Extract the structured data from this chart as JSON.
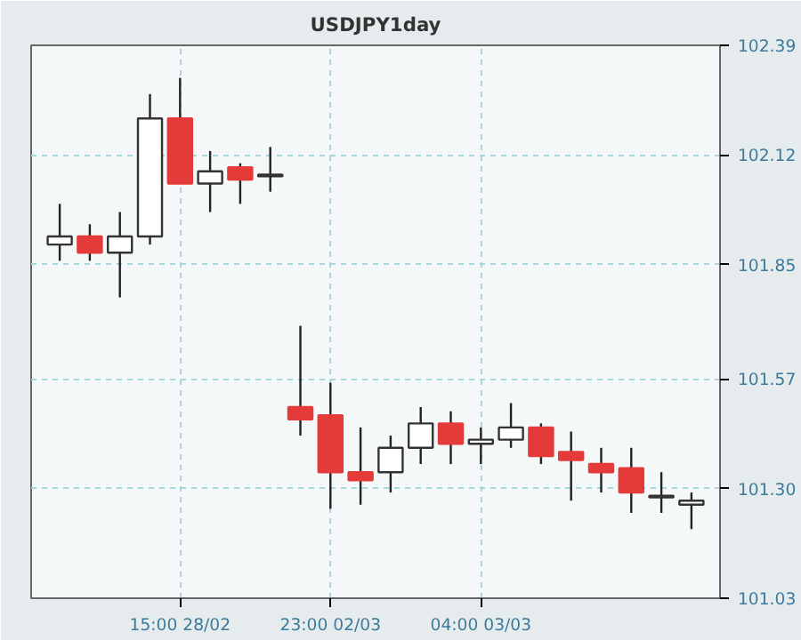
{
  "chart_data": {
    "type": "candlestick",
    "title": "USDJPY1day",
    "categories": [
      null,
      null,
      null,
      null,
      "15:00 28/02",
      null,
      null,
      null,
      null,
      "23:00 02/03",
      null,
      null,
      null,
      null,
      "04:00 03/03",
      null,
      null,
      null,
      null,
      null,
      null,
      null
    ],
    "ohlc": [
      [
        101.9,
        102.0,
        101.86,
        101.92
      ],
      [
        101.92,
        101.95,
        101.86,
        101.88
      ],
      [
        101.88,
        101.98,
        101.77,
        101.92
      ],
      [
        101.92,
        102.27,
        101.9,
        102.21
      ],
      [
        102.21,
        102.31,
        102.05,
        102.05
      ],
      [
        102.05,
        102.13,
        101.98,
        102.08
      ],
      [
        102.09,
        102.1,
        102.0,
        102.06
      ],
      [
        102.07,
        102.14,
        102.03,
        102.07
      ],
      [
        101.5,
        101.7,
        101.43,
        101.47
      ],
      [
        101.48,
        101.56,
        101.25,
        101.34
      ],
      [
        101.34,
        101.45,
        101.26,
        101.32
      ],
      [
        101.34,
        101.43,
        101.29,
        101.4
      ],
      [
        101.4,
        101.5,
        101.36,
        101.46
      ],
      [
        101.46,
        101.49,
        101.36,
        101.41
      ],
      [
        101.41,
        101.45,
        101.36,
        101.42
      ],
      [
        101.42,
        101.51,
        101.4,
        101.45
      ],
      [
        101.45,
        101.46,
        101.36,
        101.38
      ],
      [
        101.39,
        101.44,
        101.27,
        101.37
      ],
      [
        101.36,
        101.4,
        101.29,
        101.34
      ],
      [
        101.35,
        101.4,
        101.24,
        101.29
      ],
      [
        101.28,
        101.34,
        101.24,
        101.28
      ],
      [
        101.26,
        101.29,
        101.2,
        101.27
      ]
    ],
    "colors": [
      "#ffffff",
      "#e53a3a",
      "#ffffff",
      "#ffffff",
      "#e53a3a",
      "#ffffff",
      "#e53a3a",
      "#ffffff",
      "#e53a3a",
      "#e53a3a",
      "#e53a3a",
      "#ffffff",
      "#ffffff",
      "#e53a3a",
      "#ffffff",
      "#ffffff",
      "#e53a3a",
      "#e53a3a",
      "#e53a3a",
      "#e53a3a",
      "#f08080",
      "#ffffff"
    ],
    "ylim": [
      101.03,
      102.39
    ],
    "yticks": [
      102.39,
      102.12,
      101.85,
      101.57,
      {
        "value": 101.3,
        "label": "101.30"
      },
      101.03
    ],
    "grid": true
  }
}
